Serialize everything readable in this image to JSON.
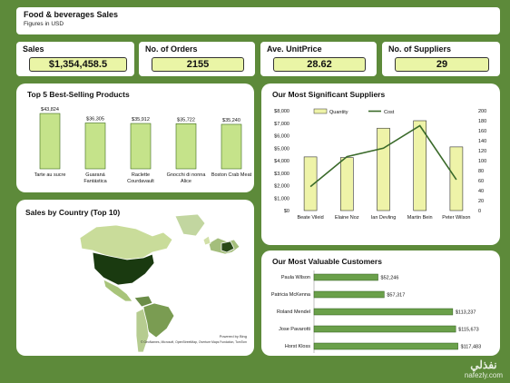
{
  "header": {
    "title": "Food & beverages Sales",
    "subtitle": "Figures in USD"
  },
  "kpis": [
    {
      "label": "Sales",
      "value": "$1,354,458.5"
    },
    {
      "label": "No. of Orders",
      "value": "2155"
    },
    {
      "label": "Ave. UnitPrice",
      "value": "28.62"
    },
    {
      "label": "No. of Suppliers",
      "value": "29"
    }
  ],
  "panels": {
    "top_products": "Top 5 Best-Selling Products",
    "suppliers": "Our Most Significant Suppliers",
    "country": "Sales by Country (Top 10)",
    "customers": "Our Most Valuable Customers"
  },
  "map": {
    "attribution_1": "Powered by Bing",
    "attribution_2": "© GeoNames, Microsoft, OpenStreetMap, Overture Maps Fundation, TomTom"
  },
  "watermark": {
    "arabic": "نفذلي",
    "latin": "nafezly.com"
  },
  "colors": {
    "background": "#5d8a3a",
    "bar_fill": "#c5e38a",
    "bar_stroke": "#3d6b1a",
    "kpi_fill": "#eaf5a6",
    "line": "#3a6a2a",
    "supplier_bar": "#eef3a8",
    "customer_bar": "#6aa04a"
  },
  "chart_data": [
    {
      "type": "bar",
      "title": "Top 5 Best-Selling Products",
      "categories": [
        "Tarte au sucre",
        "Guaraná Fantástica",
        "Raclette Courdavault",
        "Gnocchi di nonna Alice",
        "Boston Crab Meat"
      ],
      "category_lines": [
        [
          "Tarte au sucre"
        ],
        [
          "Guaraná",
          "Fantástica"
        ],
        [
          "Raclette",
          "Courdavault"
        ],
        [
          "Gnocchi di nonna",
          "Alice"
        ],
        [
          "Boston Crab Meat"
        ]
      ],
      "values": [
        43824,
        36305,
        35912,
        35722,
        35240
      ],
      "data_labels": [
        "$43,824",
        "$36,305",
        "$35,912",
        "$35,722",
        "$35,240"
      ],
      "ylim": [
        0,
        46000
      ]
    },
    {
      "type": "bar",
      "title": "Our Most Significant Suppliers",
      "categories": [
        "Beate Vileid",
        "Elaine Noz",
        "Ian Devling",
        "Martin Bein",
        "Peter Wilson"
      ],
      "series": [
        {
          "name": "Quantity",
          "kind": "bar",
          "axis": "left",
          "values": [
            4300,
            4250,
            6600,
            7200,
            5100
          ]
        },
        {
          "name": "Cost",
          "kind": "line",
          "axis": "right",
          "values": [
            48,
            108,
            125,
            170,
            62
          ]
        }
      ],
      "y_left": {
        "ticks": [
          "$0",
          "$1,000",
          "$2,000",
          "$3,000",
          "$4,000",
          "$5,000",
          "$6,000",
          "$7,000",
          "$8,000"
        ],
        "ylim": [
          0,
          8000
        ]
      },
      "y_right": {
        "ticks": [
          "0",
          "20",
          "40",
          "60",
          "80",
          "100",
          "120",
          "140",
          "160",
          "180",
          "200"
        ],
        "ylim": [
          0,
          200
        ]
      },
      "legend": "top"
    },
    {
      "type": "bar",
      "orientation": "horizontal",
      "title": "Our Most Valuable Customers",
      "categories": [
        "Paula Wilson",
        "Patricia McKenna",
        "Roland Mendel",
        "Jose Pavarotti",
        "Horst Kloss"
      ],
      "values": [
        52246,
        57317,
        113237,
        115673,
        117483
      ],
      "data_labels": [
        "$52,246",
        "$57,317",
        "$113,237",
        "$115,673",
        "$117,483"
      ],
      "xlim": [
        0,
        120000
      ]
    }
  ]
}
